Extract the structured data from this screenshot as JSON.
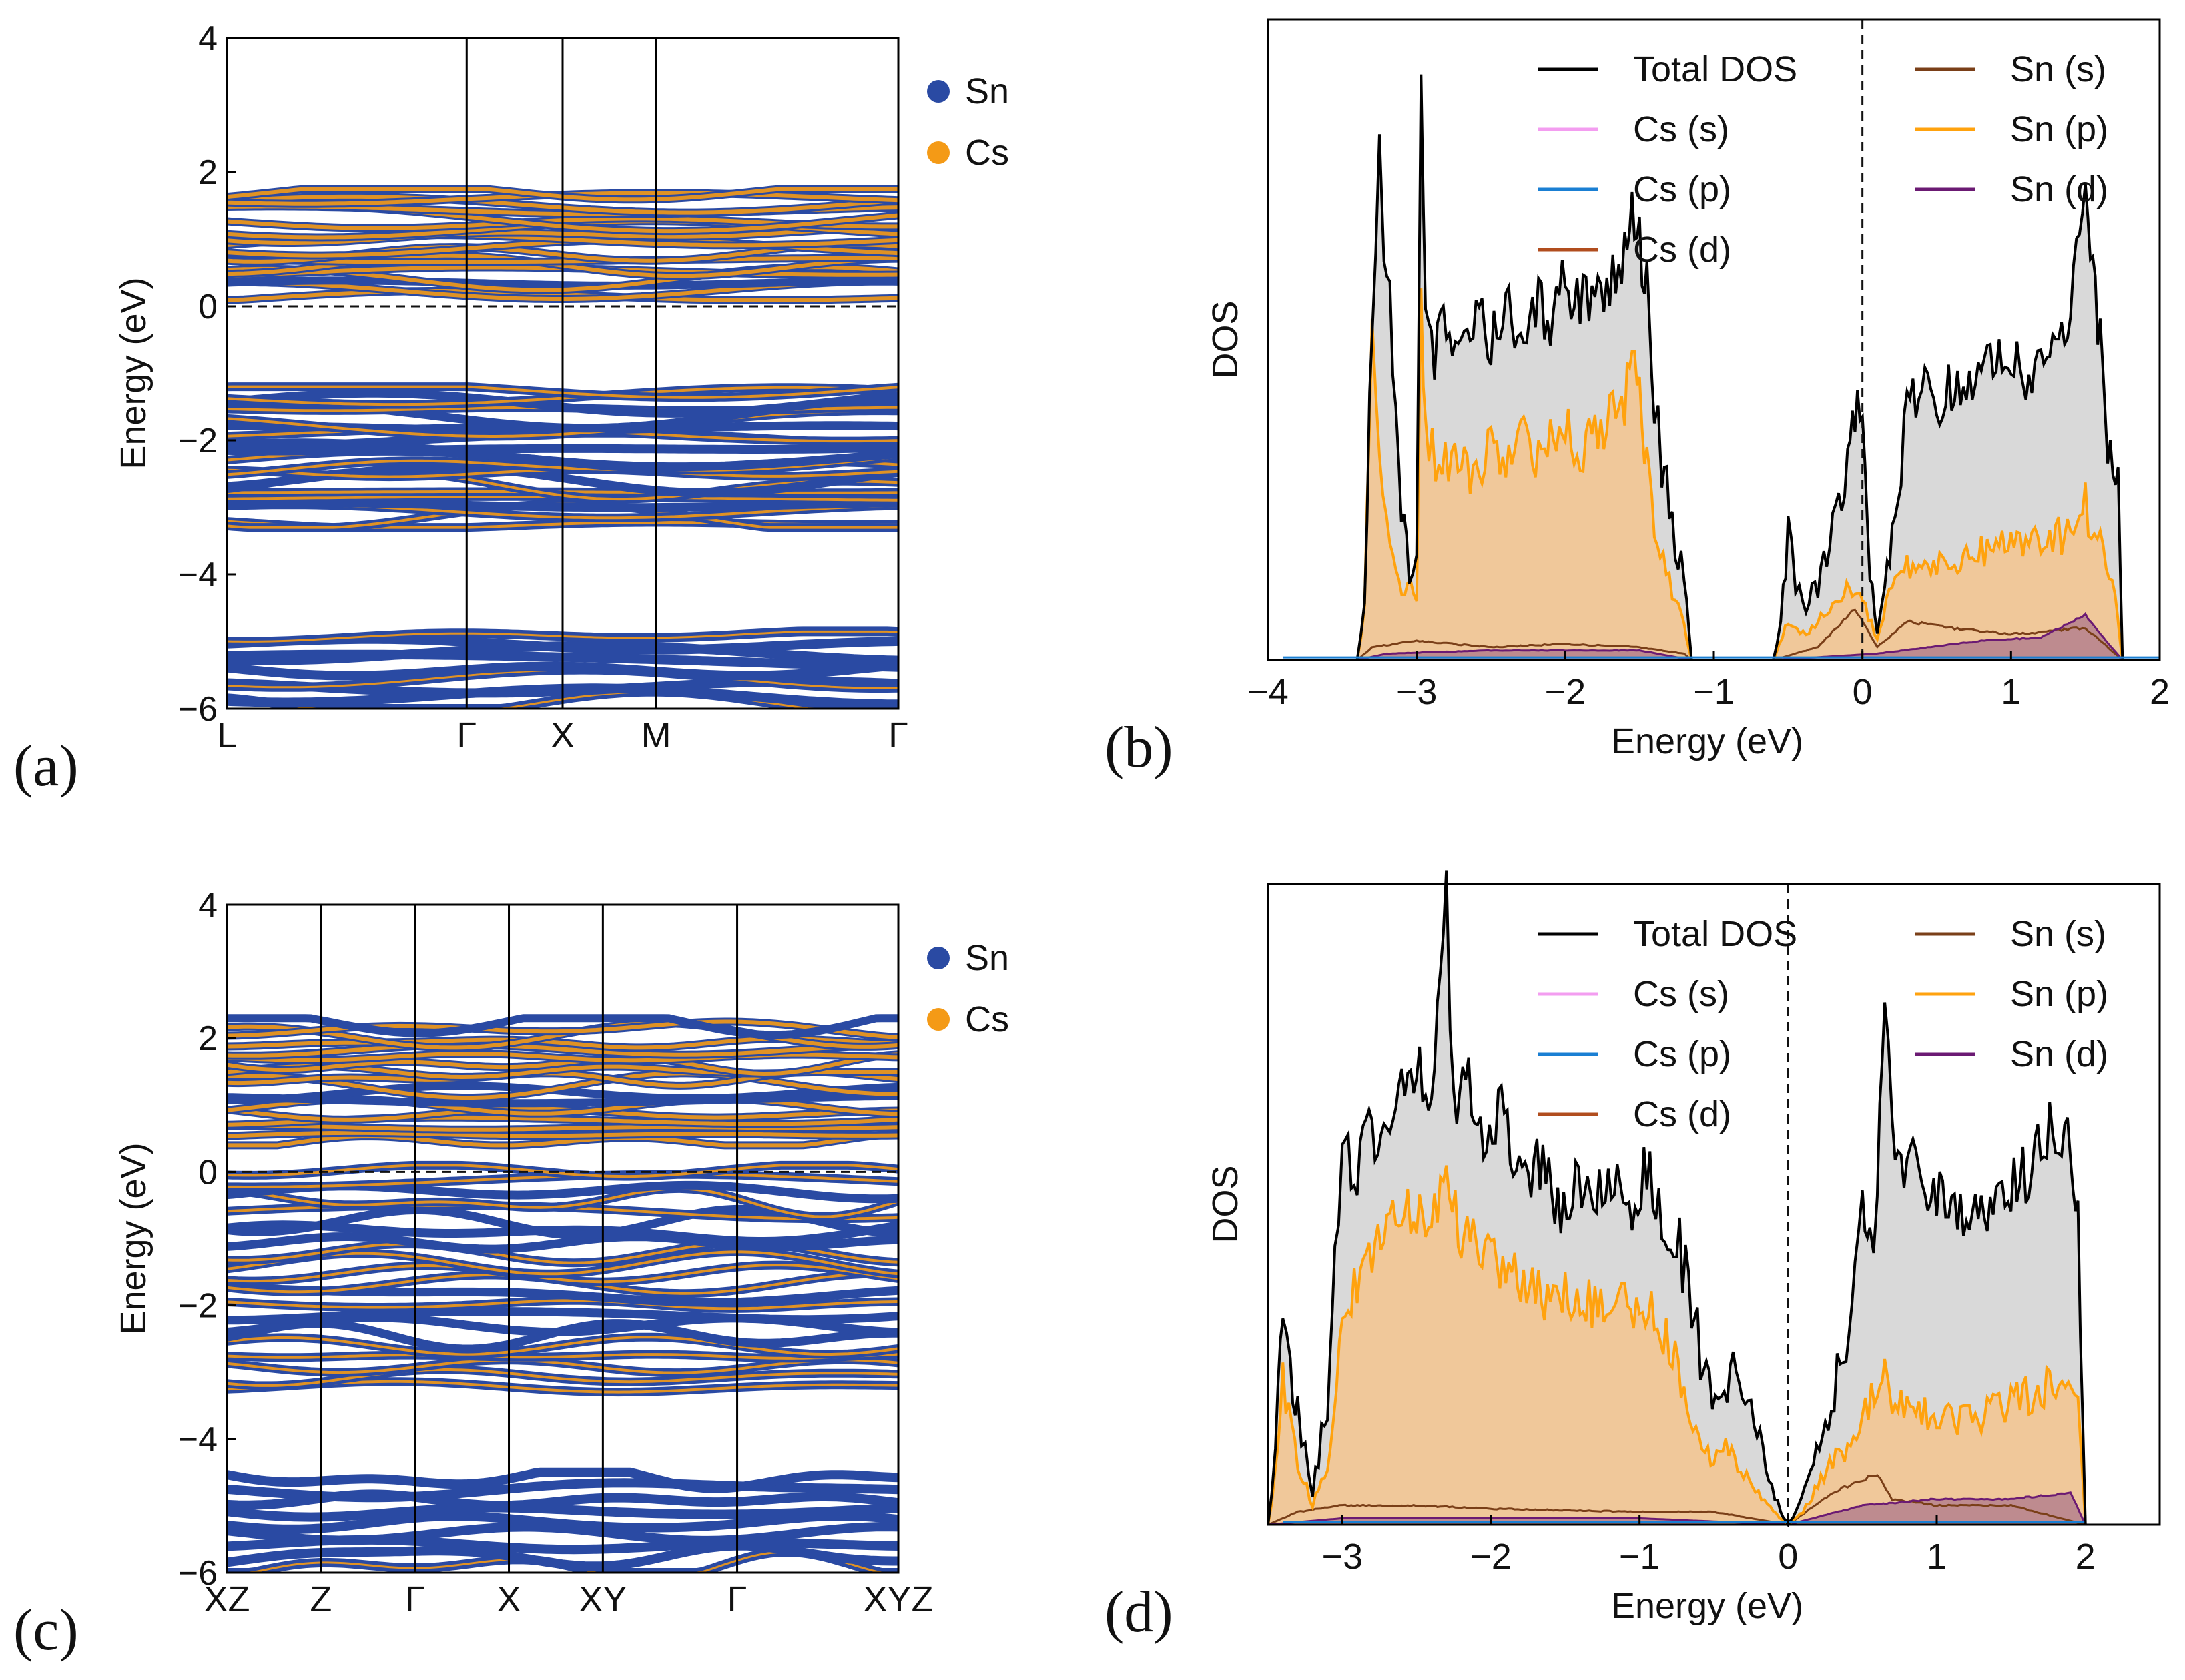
{
  "colors": {
    "sn": "#2a4aa3",
    "cs": "#f49a16",
    "total": "#000000",
    "cs_s": "#f39df0",
    "cs_p": "#1a7fd3",
    "cs_d": "#b14d1e",
    "sn_s": "#7a3f18",
    "sn_p": "#ffa20e",
    "sn_d": "#6b1a73",
    "fill_total": "#d9d9d9",
    "fill_snp": "#f0c89a",
    "fill_snd": "#a8708a"
  },
  "chart_data": [
    {
      "panel_label": "(a)",
      "type": "line",
      "ylabel": "Energy (eV)",
      "ylim": [
        -6,
        4
      ],
      "yticks": [
        "−6",
        "−4",
        "−2",
        "0",
        "2",
        "4"
      ],
      "kpoints": [
        "L",
        "Γ",
        "X",
        "M",
        "Γ"
      ],
      "kpos": [
        0,
        1,
        1.4,
        1.79,
        2.8
      ],
      "fermi_level": 0,
      "legend": [
        "Sn",
        "Cs"
      ],
      "bands": {
        "conduction": [
          0.1,
          1.75
        ],
        "valence": [
          -3.3,
          -1.2
        ],
        "deep": [
          -6,
          -4.85
        ]
      }
    },
    {
      "panel_label": "(b)",
      "type": "area",
      "xlabel": "Energy (eV)",
      "ylabel": "DOS",
      "xlim": [
        -4,
        2
      ],
      "xticks": [
        "−4",
        "−3",
        "−2",
        "−1",
        "0",
        "1",
        "2"
      ],
      "fermi_level": 0,
      "legend": [
        "Total DOS",
        "Cs (s)",
        "Cs (p)",
        "Cs (d)",
        "Sn (s)",
        "Sn (p)",
        "Sn (d)"
      ],
      "total_dos": [
        [
          -3.4,
          0
        ],
        [
          -3.35,
          0.1
        ],
        [
          -3.3,
          0.55
        ],
        [
          -3.25,
          0.82
        ],
        [
          -3.22,
          0.6
        ],
        [
          -3.18,
          0.55
        ],
        [
          -3.12,
          0.3
        ],
        [
          -3.05,
          0.12
        ],
        [
          -3.0,
          0.18
        ],
        [
          -2.97,
          0.95
        ],
        [
          -2.94,
          0.5
        ],
        [
          -2.88,
          0.48
        ],
        [
          -2.8,
          0.52
        ],
        [
          -2.7,
          0.5
        ],
        [
          -2.6,
          0.54
        ],
        [
          -2.5,
          0.5
        ],
        [
          -2.4,
          0.55
        ],
        [
          -2.3,
          0.48
        ],
        [
          -2.2,
          0.56
        ],
        [
          -2.1,
          0.52
        ],
        [
          -2.0,
          0.6
        ],
        [
          -1.9,
          0.55
        ],
        [
          -1.8,
          0.58
        ],
        [
          -1.7,
          0.6
        ],
        [
          -1.6,
          0.62
        ],
        [
          -1.55,
          0.7
        ],
        [
          -1.5,
          0.65
        ],
        [
          -1.45,
          0.58
        ],
        [
          -1.4,
          0.4
        ],
        [
          -1.35,
          0.3
        ],
        [
          -1.3,
          0.24
        ],
        [
          -1.2,
          0.12
        ],
        [
          -1.15,
          0
        ],
        [
          -0.6,
          0
        ],
        [
          -0.55,
          0.05
        ],
        [
          -0.5,
          0.2
        ],
        [
          -0.45,
          0.12
        ],
        [
          -0.4,
          0.08
        ],
        [
          -0.3,
          0.12
        ],
        [
          -0.2,
          0.2
        ],
        [
          -0.1,
          0.28
        ],
        [
          -0.05,
          0.4
        ],
        [
          0.0,
          0.35
        ],
        [
          0.05,
          0.15
        ],
        [
          0.1,
          0.05
        ],
        [
          0.15,
          0.1
        ],
        [
          0.2,
          0.22
        ],
        [
          0.3,
          0.38
        ],
        [
          0.4,
          0.42
        ],
        [
          0.5,
          0.4
        ],
        [
          0.6,
          0.42
        ],
        [
          0.7,
          0.45
        ],
        [
          0.8,
          0.42
        ],
        [
          0.9,
          0.5
        ],
        [
          1.0,
          0.48
        ],
        [
          1.1,
          0.45
        ],
        [
          1.2,
          0.48
        ],
        [
          1.3,
          0.52
        ],
        [
          1.4,
          0.55
        ],
        [
          1.5,
          0.72
        ],
        [
          1.55,
          0.6
        ],
        [
          1.6,
          0.5
        ],
        [
          1.65,
          0.32
        ],
        [
          1.72,
          0.28
        ],
        [
          1.75,
          0
        ]
      ],
      "sn_p": [
        [
          -3.4,
          0
        ],
        [
          -3.35,
          0.08
        ],
        [
          -3.3,
          0.5
        ],
        [
          -3.25,
          0.3
        ],
        [
          -3.18,
          0.2
        ],
        [
          -3.1,
          0.12
        ],
        [
          -3.0,
          0.1
        ],
        [
          -2.97,
          0.55
        ],
        [
          -2.94,
          0.35
        ],
        [
          -2.85,
          0.3
        ],
        [
          -2.7,
          0.32
        ],
        [
          -2.6,
          0.28
        ],
        [
          -2.5,
          0.33
        ],
        [
          -2.4,
          0.3
        ],
        [
          -2.3,
          0.35
        ],
        [
          -2.2,
          0.32
        ],
        [
          -2.1,
          0.34
        ],
        [
          -2.0,
          0.36
        ],
        [
          -1.9,
          0.33
        ],
        [
          -1.8,
          0.35
        ],
        [
          -1.7,
          0.38
        ],
        [
          -1.6,
          0.4
        ],
        [
          -1.55,
          0.48
        ],
        [
          -1.5,
          0.42
        ],
        [
          -1.45,
          0.3
        ],
        [
          -1.4,
          0.22
        ],
        [
          -1.3,
          0.12
        ],
        [
          -1.2,
          0.05
        ],
        [
          -1.15,
          0
        ],
        [
          -0.6,
          0
        ],
        [
          -0.5,
          0.06
        ],
        [
          -0.4,
          0.04
        ],
        [
          -0.2,
          0.08
        ],
        [
          -0.05,
          0.12
        ],
        [
          0.0,
          0.1
        ],
        [
          0.1,
          0.03
        ],
        [
          0.2,
          0.12
        ],
        [
          0.3,
          0.15
        ],
        [
          0.4,
          0.14
        ],
        [
          0.6,
          0.15
        ],
        [
          0.8,
          0.17
        ],
        [
          1.0,
          0.18
        ],
        [
          1.2,
          0.18
        ],
        [
          1.4,
          0.2
        ],
        [
          1.5,
          0.24
        ],
        [
          1.6,
          0.18
        ],
        [
          1.7,
          0.1
        ],
        [
          1.75,
          0
        ]
      ],
      "sn_s": [
        [
          -3.4,
          0
        ],
        [
          -3.3,
          0.02
        ],
        [
          -3.0,
          0.03
        ],
        [
          -2.5,
          0.02
        ],
        [
          -2.0,
          0.025
        ],
        [
          -1.5,
          0.02
        ],
        [
          -1.2,
          0.01
        ],
        [
          -1.15,
          0
        ],
        [
          -0.6,
          0
        ],
        [
          -0.3,
          0.02
        ],
        [
          -0.05,
          0.08
        ],
        [
          0.1,
          0.02
        ],
        [
          0.3,
          0.06
        ],
        [
          0.6,
          0.05
        ],
        [
          1.0,
          0.04
        ],
        [
          1.5,
          0.05
        ],
        [
          1.75,
          0
        ]
      ],
      "sn_d": [
        [
          -3.4,
          0
        ],
        [
          -3.2,
          0.01
        ],
        [
          -2.5,
          0.015
        ],
        [
          -1.5,
          0.015
        ],
        [
          -1.15,
          0
        ],
        [
          -0.6,
          0
        ],
        [
          0.1,
          0.01
        ],
        [
          0.8,
          0.03
        ],
        [
          1.2,
          0.035
        ],
        [
          1.5,
          0.07
        ],
        [
          1.6,
          0.04
        ],
        [
          1.75,
          0
        ]
      ]
    },
    {
      "panel_label": "(c)",
      "type": "line",
      "ylabel": "Energy (eV)",
      "ylim": [
        -6,
        4
      ],
      "yticks": [
        "−6",
        "−4",
        "−2",
        "0",
        "2",
        "4"
      ],
      "kpoints": [
        "XZ",
        "Z",
        "Γ",
        "X",
        "XY",
        "Γ",
        "XYZ"
      ],
      "kpos": [
        0,
        0.7,
        1.4,
        2.1,
        2.8,
        3.8,
        5.0
      ],
      "fermi_level": 0,
      "legend": [
        "Sn",
        "Cs"
      ],
      "bands": {
        "conduction": [
          0.4,
          2.3
        ],
        "valence": [
          -3.3,
          0.1
        ],
        "deep": [
          -6,
          -4.5
        ]
      }
    },
    {
      "panel_label": "(d)",
      "type": "area",
      "xlabel": "Energy (eV)",
      "ylabel": "DOS",
      "xlim": [
        -3.5,
        2.5
      ],
      "xticks": [
        "−3",
        "−2",
        "−1",
        "0",
        "1",
        "2"
      ],
      "fermi_level": 0,
      "legend": [
        "Total DOS",
        "Cs (s)",
        "Cs (p)",
        "Cs (d)",
        "Sn (s)",
        "Sn (p)",
        "Sn (d)"
      ],
      "total_dos": [
        [
          -3.5,
          0
        ],
        [
          -3.45,
          0.12
        ],
        [
          -3.4,
          0.36
        ],
        [
          -3.35,
          0.25
        ],
        [
          -3.3,
          0.18
        ],
        [
          -3.25,
          0.12
        ],
        [
          -3.2,
          0.05
        ],
        [
          -3.1,
          0.2
        ],
        [
          -3.05,
          0.45
        ],
        [
          -3.0,
          0.58
        ],
        [
          -2.9,
          0.55
        ],
        [
          -2.8,
          0.62
        ],
        [
          -2.7,
          0.6
        ],
        [
          -2.6,
          0.7
        ],
        [
          -2.5,
          0.72
        ],
        [
          -2.4,
          0.68
        ],
        [
          -2.3,
          0.98
        ],
        [
          -2.25,
          0.65
        ],
        [
          -2.15,
          0.7
        ],
        [
          -2.05,
          0.62
        ],
        [
          -1.95,
          0.65
        ],
        [
          -1.85,
          0.58
        ],
        [
          -1.75,
          0.56
        ],
        [
          -1.65,
          0.55
        ],
        [
          -1.55,
          0.5
        ],
        [
          -1.45,
          0.52
        ],
        [
          -1.35,
          0.55
        ],
        [
          -1.25,
          0.5
        ],
        [
          -1.15,
          0.55
        ],
        [
          -1.05,
          0.5
        ],
        [
          -0.95,
          0.56
        ],
        [
          -0.85,
          0.48
        ],
        [
          -0.75,
          0.45
        ],
        [
          -0.65,
          0.35
        ],
        [
          -0.55,
          0.22
        ],
        [
          -0.45,
          0.18
        ],
        [
          -0.35,
          0.25
        ],
        [
          -0.25,
          0.2
        ],
        [
          -0.15,
          0.08
        ],
        [
          -0.05,
          0.02
        ],
        [
          0.0,
          0
        ],
        [
          0.05,
          0.02
        ],
        [
          0.15,
          0.08
        ],
        [
          0.25,
          0.15
        ],
        [
          0.35,
          0.25
        ],
        [
          0.45,
          0.38
        ],
        [
          0.5,
          0.5
        ],
        [
          0.55,
          0.42
        ],
        [
          0.6,
          0.52
        ],
        [
          0.65,
          0.82
        ],
        [
          0.7,
          0.6
        ],
        [
          0.8,
          0.56
        ],
        [
          0.9,
          0.55
        ],
        [
          1.0,
          0.52
        ],
        [
          1.1,
          0.5
        ],
        [
          1.2,
          0.48
        ],
        [
          1.3,
          0.5
        ],
        [
          1.4,
          0.48
        ],
        [
          1.5,
          0.52
        ],
        [
          1.6,
          0.55
        ],
        [
          1.7,
          0.6
        ],
        [
          1.8,
          0.62
        ],
        [
          1.9,
          0.58
        ],
        [
          1.95,
          0.48
        ],
        [
          2.0,
          0
        ]
      ],
      "sn_p": [
        [
          -3.5,
          0
        ],
        [
          -3.45,
          0.08
        ],
        [
          -3.4,
          0.22
        ],
        [
          -3.3,
          0.1
        ],
        [
          -3.2,
          0.03
        ],
        [
          -3.1,
          0.1
        ],
        [
          -3.0,
          0.3
        ],
        [
          -2.9,
          0.38
        ],
        [
          -2.8,
          0.42
        ],
        [
          -2.7,
          0.45
        ],
        [
          -2.6,
          0.5
        ],
        [
          -2.5,
          0.48
        ],
        [
          -2.4,
          0.46
        ],
        [
          -2.3,
          0.55
        ],
        [
          -2.2,
          0.44
        ],
        [
          -2.1,
          0.45
        ],
        [
          -2.0,
          0.42
        ],
        [
          -1.9,
          0.4
        ],
        [
          -1.8,
          0.38
        ],
        [
          -1.7,
          0.36
        ],
        [
          -1.6,
          0.35
        ],
        [
          -1.5,
          0.36
        ],
        [
          -1.4,
          0.35
        ],
        [
          -1.3,
          0.34
        ],
        [
          -1.2,
          0.33
        ],
        [
          -1.1,
          0.35
        ],
        [
          -1.0,
          0.32
        ],
        [
          -0.9,
          0.34
        ],
        [
          -0.8,
          0.28
        ],
        [
          -0.7,
          0.2
        ],
        [
          -0.6,
          0.12
        ],
        [
          -0.5,
          0.1
        ],
        [
          -0.4,
          0.12
        ],
        [
          -0.3,
          0.08
        ],
        [
          -0.2,
          0.05
        ],
        [
          -0.1,
          0.02
        ],
        [
          0.0,
          0
        ],
        [
          0.1,
          0.02
        ],
        [
          0.2,
          0.06
        ],
        [
          0.3,
          0.1
        ],
        [
          0.4,
          0.12
        ],
        [
          0.5,
          0.18
        ],
        [
          0.6,
          0.2
        ],
        [
          0.65,
          0.28
        ],
        [
          0.7,
          0.2
        ],
        [
          0.8,
          0.18
        ],
        [
          1.0,
          0.17
        ],
        [
          1.2,
          0.16
        ],
        [
          1.4,
          0.18
        ],
        [
          1.6,
          0.2
        ],
        [
          1.8,
          0.22
        ],
        [
          1.95,
          0.18
        ],
        [
          2.0,
          0
        ]
      ],
      "sn_s": [
        [
          -3.5,
          0
        ],
        [
          -3.3,
          0.02
        ],
        [
          -3.0,
          0.03
        ],
        [
          -2.5,
          0.03
        ],
        [
          -2.0,
          0.025
        ],
        [
          -1.0,
          0.02
        ],
        [
          -0.5,
          0.02
        ],
        [
          0.0,
          0
        ],
        [
          0.3,
          0.05
        ],
        [
          0.6,
          0.08
        ],
        [
          0.7,
          0.04
        ],
        [
          1.0,
          0.03
        ],
        [
          1.5,
          0.03
        ],
        [
          2.0,
          0
        ]
      ],
      "sn_d": [
        [
          -3.5,
          0
        ],
        [
          -3.0,
          0.01
        ],
        [
          -2.0,
          0.01
        ],
        [
          -1.0,
          0.01
        ],
        [
          0.0,
          0
        ],
        [
          0.5,
          0.03
        ],
        [
          1.0,
          0.04
        ],
        [
          1.5,
          0.04
        ],
        [
          1.9,
          0.05
        ],
        [
          2.0,
          0
        ]
      ]
    }
  ]
}
